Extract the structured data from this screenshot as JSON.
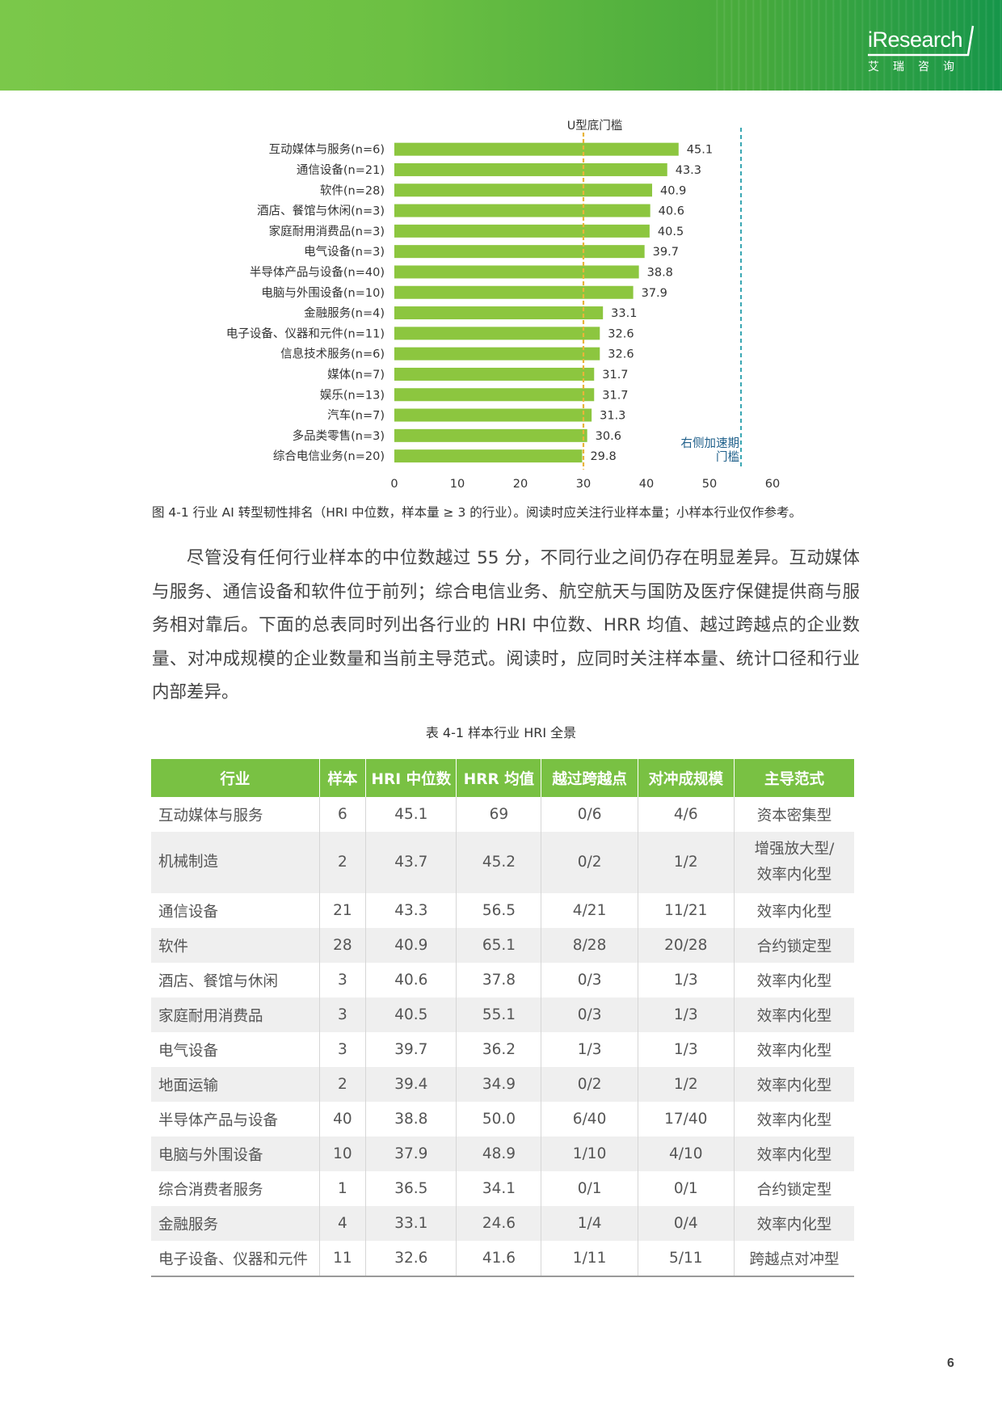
{
  "header": {
    "logo_text": "iResearch",
    "logo_cn": "艾瑞咨询"
  },
  "chart_data": {
    "type": "bar",
    "orientation": "horizontal",
    "categories": [
      "互动媒体与服务(n=6)",
      "通信设备(n=21)",
      "软件(n=28)",
      "酒店、餐馆与休闲(n=3)",
      "家庭耐用消费品(n=3)",
      "电气设备(n=3)",
      "半导体产品与设备(n=40)",
      "电脑与外围设备(n=10)",
      "金融服务(n=4)",
      "电子设备、仪器和元件(n=11)",
      "信息技术服务(n=6)",
      "媒体(n=7)",
      "娱乐(n=13)",
      "汽车(n=7)",
      "多品类零售(n=3)",
      "综合电信业务(n=20)"
    ],
    "values": [
      45.1,
      43.3,
      40.9,
      40.6,
      40.5,
      39.7,
      38.8,
      37.9,
      33.1,
      32.6,
      32.6,
      31.7,
      31.7,
      31.3,
      30.6,
      29.8
    ],
    "value_labels": [
      "45.1",
      "43.3",
      "40.9",
      "40.6",
      "40.5",
      "39.7",
      "38.8",
      "37.9",
      "33.1",
      "32.6",
      "32.6",
      "31.7",
      "31.7",
      "31.3",
      "30.6",
      "29.8"
    ],
    "xlim": [
      0,
      60
    ],
    "xticks": [
      0,
      10,
      20,
      30,
      40,
      50,
      60
    ],
    "xtick_labels": [
      "0",
      "10",
      "20",
      "30",
      "40",
      "50",
      "60"
    ],
    "grid": false,
    "bar_color": "#8cc63f",
    "reference_lines": [
      {
        "label": "U型底门槛",
        "value": 30,
        "color": "#e8b43a",
        "style": "dashed"
      },
      {
        "label_lines": [
          "右侧加速期",
          "门槛"
        ],
        "value": 55,
        "color": "#3aa7b3",
        "style": "dashed"
      }
    ]
  },
  "caption": "图 4-1 行业 AI 转型韧性排名（HRI 中位数，样本量 ≥ 3 的行业）。阅读时应关注行业样本量；小样本行业仅作参考。",
  "paragraph": "尽管没有任何行业样本的中位数越过 55 分，不同行业之间仍存在明显差异。互动媒体与服务、通信设备和软件位于前列；综合电信业务、航空航天与国防及医疗保健提供商与服务相对靠后。下面的总表同时列出各行业的 HRI 中位数、HRR 均值、越过跨越点的企业数量、对冲成规模的企业数量和当前主导范式。阅读时，应同时关注样本量、统计口径和行业内部差异。",
  "table": {
    "title": "表 4-1 样本行业 HRI 全景",
    "headers": [
      "行业",
      "样本",
      "HRI 中位数",
      "HRR 均值",
      "越过跨越点",
      "对冲成规模",
      "主导范式"
    ],
    "rows": [
      [
        "互动媒体与服务",
        "6",
        "45.1",
        "69",
        "0/6",
        "4/6",
        "资本密集型"
      ],
      [
        "机械制造",
        "2",
        "43.7",
        "45.2",
        "0/2",
        "1/2",
        "增强放大型/效率内化型"
      ],
      [
        "通信设备",
        "21",
        "43.3",
        "56.5",
        "4/21",
        "11/21",
        "效率内化型"
      ],
      [
        "软件",
        "28",
        "40.9",
        "65.1",
        "8/28",
        "20/28",
        "合约锁定型"
      ],
      [
        "酒店、餐馆与休闲",
        "3",
        "40.6",
        "37.8",
        "0/3",
        "1/3",
        "效率内化型"
      ],
      [
        "家庭耐用消费品",
        "3",
        "40.5",
        "55.1",
        "0/3",
        "1/3",
        "效率内化型"
      ],
      [
        "电气设备",
        "3",
        "39.7",
        "36.2",
        "1/3",
        "1/3",
        "效率内化型"
      ],
      [
        "地面运输",
        "2",
        "39.4",
        "34.9",
        "0/2",
        "1/2",
        "效率内化型"
      ],
      [
        "半导体产品与设备",
        "40",
        "38.8",
        "50.0",
        "6/40",
        "17/40",
        "效率内化型"
      ],
      [
        "电脑与外围设备",
        "10",
        "37.9",
        "48.9",
        "1/10",
        "4/10",
        "效率内化型"
      ],
      [
        "综合消费者服务",
        "1",
        "36.5",
        "34.1",
        "0/1",
        "0/1",
        "合约锁定型"
      ],
      [
        "金融服务",
        "4",
        "33.1",
        "24.6",
        "1/4",
        "0/4",
        "效率内化型"
      ],
      [
        "电子设备、仪器和元件",
        "11",
        "32.6",
        "41.6",
        "1/11",
        "5/11",
        "跨越点对冲型"
      ]
    ]
  },
  "page_number": "6"
}
